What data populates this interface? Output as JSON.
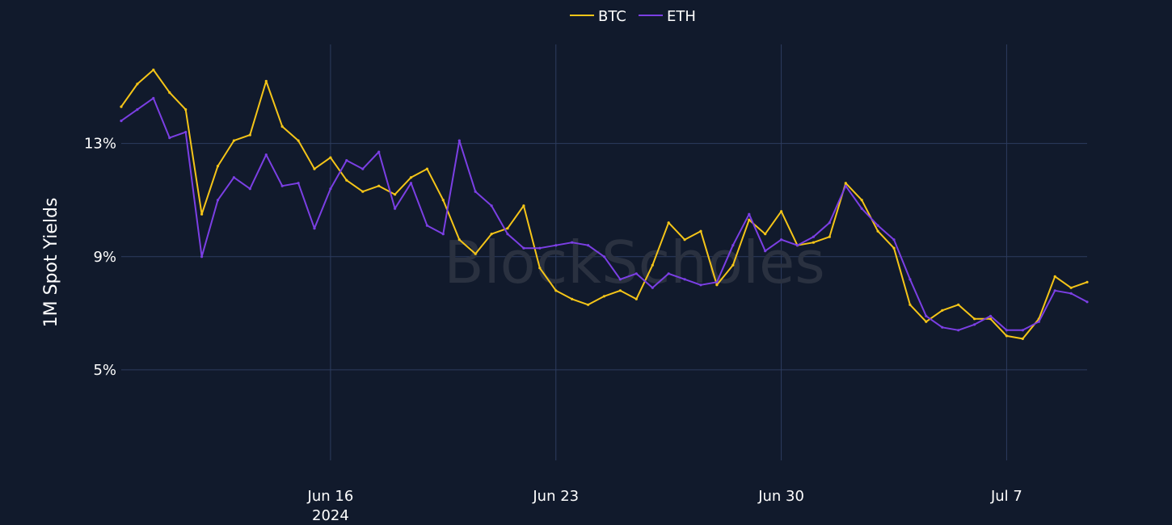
{
  "chart_data": {
    "type": "line",
    "ylabel": "1M Spot Yields",
    "watermark": "BlockScholes",
    "x_ticks": [
      {
        "date": "2024-06-16",
        "label": "Jun 16",
        "sublabel": "2024"
      },
      {
        "date": "2024-06-23",
        "label": "Jun 23",
        "sublabel": ""
      },
      {
        "date": "2024-06-30",
        "label": "Jun 30",
        "sublabel": ""
      },
      {
        "date": "2024-07-07",
        "label": "Jul 7",
        "sublabel": ""
      }
    ],
    "y_ticks": [
      {
        "value": 5,
        "label": "5%"
      },
      {
        "value": 9,
        "label": "9%"
      },
      {
        "value": 13,
        "label": "13%"
      }
    ],
    "xlim": [
      "2024-06-09T12:00",
      "2024-07-09T12:00"
    ],
    "ylim": [
      1.8,
      16.5
    ],
    "grid": true,
    "legend_position": "top-center",
    "series": [
      {
        "name": "BTC",
        "color": "#f5c518",
        "x": [
          "2024-06-09T12:00",
          "2024-06-10T00:00",
          "2024-06-10T12:00",
          "2024-06-11T00:00",
          "2024-06-11T12:00",
          "2024-06-12T00:00",
          "2024-06-12T12:00",
          "2024-06-13T00:00",
          "2024-06-13T12:00",
          "2024-06-14T00:00",
          "2024-06-14T12:00",
          "2024-06-15T00:00",
          "2024-06-15T12:00",
          "2024-06-16T00:00",
          "2024-06-16T12:00",
          "2024-06-17T00:00",
          "2024-06-17T12:00",
          "2024-06-18T00:00",
          "2024-06-18T12:00",
          "2024-06-19T00:00",
          "2024-06-19T12:00",
          "2024-06-20T00:00",
          "2024-06-20T12:00",
          "2024-06-21T00:00",
          "2024-06-21T12:00",
          "2024-06-22T00:00",
          "2024-06-22T12:00",
          "2024-06-23T00:00",
          "2024-06-23T12:00",
          "2024-06-24T00:00",
          "2024-06-24T12:00",
          "2024-06-25T00:00",
          "2024-06-25T12:00",
          "2024-06-26T00:00",
          "2024-06-26T12:00",
          "2024-06-27T00:00",
          "2024-06-27T12:00",
          "2024-06-28T00:00",
          "2024-06-28T12:00",
          "2024-06-29T00:00",
          "2024-06-29T12:00",
          "2024-06-30T00:00",
          "2024-06-30T12:00",
          "2024-07-01T00:00",
          "2024-07-01T12:00",
          "2024-07-02T00:00",
          "2024-07-02T12:00",
          "2024-07-03T00:00",
          "2024-07-03T12:00",
          "2024-07-04T00:00",
          "2024-07-04T12:00",
          "2024-07-05T00:00",
          "2024-07-05T12:00",
          "2024-07-06T00:00",
          "2024-07-06T12:00",
          "2024-07-07T00:00",
          "2024-07-07T12:00",
          "2024-07-08T00:00",
          "2024-07-08T12:00",
          "2024-07-09T00:00",
          "2024-07-09T12:00"
        ],
        "y": [
          14.3,
          15.1,
          15.6,
          14.8,
          14.2,
          10.5,
          12.2,
          13.1,
          13.3,
          15.2,
          13.6,
          13.1,
          12.1,
          12.5,
          11.7,
          11.3,
          11.5,
          11.2,
          11.8,
          12.1,
          11.0,
          9.6,
          9.1,
          9.8,
          10.0,
          10.8,
          8.6,
          7.8,
          7.5,
          7.3,
          7.6,
          7.8,
          7.5,
          8.7,
          10.2,
          9.6,
          9.9,
          8.0,
          8.7,
          10.3,
          9.8,
          10.6,
          9.4,
          9.5,
          9.7,
          11.6,
          11.0,
          9.9,
          9.3,
          7.3,
          6.7,
          7.1,
          7.3,
          6.8,
          6.8,
          6.2,
          6.1,
          6.8,
          8.3,
          7.9,
          8.1
        ]
      },
      {
        "name": "ETH",
        "color": "#7b3fe4",
        "x": [
          "2024-06-09T12:00",
          "2024-06-10T00:00",
          "2024-06-10T12:00",
          "2024-06-11T00:00",
          "2024-06-11T12:00",
          "2024-06-12T00:00",
          "2024-06-12T12:00",
          "2024-06-13T00:00",
          "2024-06-13T12:00",
          "2024-06-14T00:00",
          "2024-06-14T12:00",
          "2024-06-15T00:00",
          "2024-06-15T12:00",
          "2024-06-16T00:00",
          "2024-06-16T12:00",
          "2024-06-17T00:00",
          "2024-06-17T12:00",
          "2024-06-18T00:00",
          "2024-06-18T12:00",
          "2024-06-19T00:00",
          "2024-06-19T12:00",
          "2024-06-20T00:00",
          "2024-06-20T12:00",
          "2024-06-21T00:00",
          "2024-06-21T12:00",
          "2024-06-22T00:00",
          "2024-06-22T12:00",
          "2024-06-23T00:00",
          "2024-06-23T12:00",
          "2024-06-24T00:00",
          "2024-06-24T12:00",
          "2024-06-25T00:00",
          "2024-06-25T12:00",
          "2024-06-26T00:00",
          "2024-06-26T12:00",
          "2024-06-27T00:00",
          "2024-06-27T12:00",
          "2024-06-28T00:00",
          "2024-06-28T12:00",
          "2024-06-29T00:00",
          "2024-06-29T12:00",
          "2024-06-30T00:00",
          "2024-06-30T12:00",
          "2024-07-01T00:00",
          "2024-07-01T12:00",
          "2024-07-02T00:00",
          "2024-07-02T12:00",
          "2024-07-03T00:00",
          "2024-07-03T12:00",
          "2024-07-04T00:00",
          "2024-07-04T12:00",
          "2024-07-05T00:00",
          "2024-07-05T12:00",
          "2024-07-06T00:00",
          "2024-07-06T12:00",
          "2024-07-07T00:00",
          "2024-07-07T12:00",
          "2024-07-08T00:00",
          "2024-07-08T12:00",
          "2024-07-09T00:00",
          "2024-07-09T12:00"
        ],
        "y": [
          13.8,
          14.2,
          14.6,
          13.2,
          13.4,
          9.0,
          11.0,
          11.8,
          11.4,
          12.6,
          11.5,
          11.6,
          10.0,
          11.4,
          12.4,
          12.1,
          12.7,
          10.7,
          11.6,
          10.1,
          9.8,
          13.1,
          11.3,
          10.8,
          9.8,
          9.3,
          9.3,
          9.4,
          9.5,
          9.4,
          9.0,
          8.2,
          8.4,
          7.9,
          8.4,
          8.2,
          8.0,
          8.1,
          9.4,
          10.5,
          9.2,
          9.6,
          9.4,
          9.7,
          10.2,
          11.5,
          10.7,
          10.1,
          9.6,
          8.2,
          6.9,
          6.5,
          6.4,
          6.6,
          6.9,
          6.4,
          6.4,
          6.7,
          7.8,
          7.7,
          7.4
        ]
      }
    ]
  }
}
